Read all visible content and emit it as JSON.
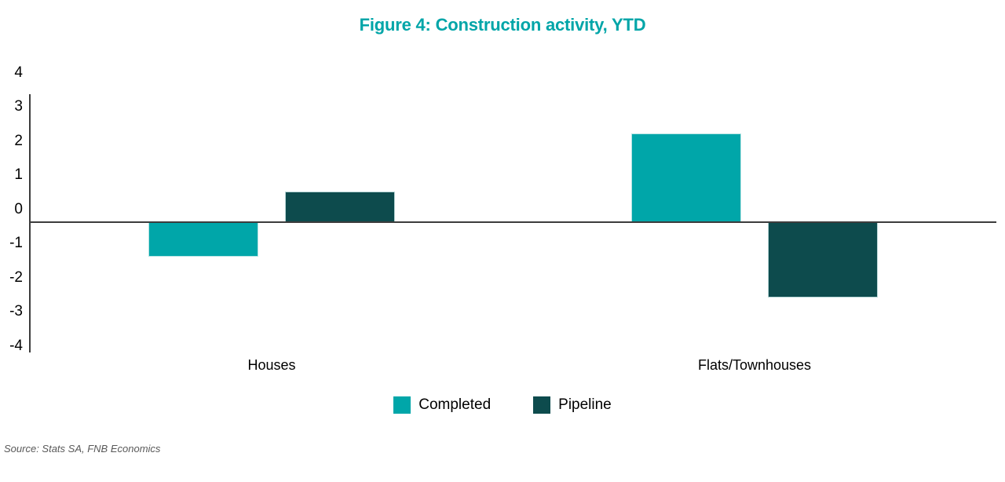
{
  "source_note": "Source: Stats SA, FNB Economics",
  "colors": {
    "completed": "#00A6A9",
    "pipeline": "#0D4B4D",
    "title": "#00A5A8",
    "axis": "#3C3C3C",
    "source_text": "#595959",
    "text": "#000000"
  },
  "chart_data": {
    "type": "bar",
    "title": "Figure 4: Construction activity, YTD",
    "categories": [
      "Houses",
      "Flats/Townhouses"
    ],
    "series": [
      {
        "name": "Completed",
        "color_key": "completed",
        "values": [
          -1.0,
          2.6
        ]
      },
      {
        "name": "Pipeline",
        "color_key": "pipeline",
        "values": [
          0.9,
          -2.2
        ]
      }
    ],
    "xlabel": "",
    "ylabel": "",
    "ylim": [
      -4,
      4
    ],
    "yticks": [
      4,
      3,
      2,
      1,
      0,
      -1,
      -2,
      -3,
      -4
    ],
    "grid": false,
    "legend_position": "bottom"
  }
}
